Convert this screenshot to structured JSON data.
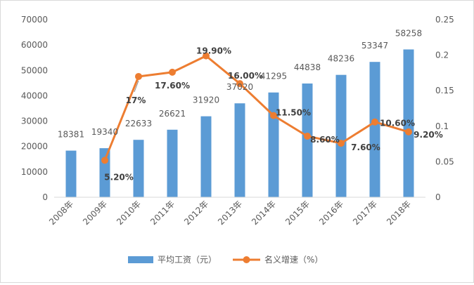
{
  "chart_data": {
    "type": "bar",
    "categories": [
      "2008年",
      "2009年",
      "2010年",
      "2011年",
      "2012年",
      "2013年",
      "2014年",
      "2015年",
      "2016年",
      "2017年",
      "2018年"
    ],
    "series": [
      {
        "name": "平均工资（元）",
        "type": "bar",
        "axis": "left",
        "values": [
          18381,
          19340,
          22633,
          26621,
          31920,
          37020,
          41295,
          44838,
          48236,
          53347,
          58258
        ],
        "data_labels": [
          "18381",
          "19340",
          "22633",
          "26621",
          "31920",
          "37020",
          "41295",
          "44838",
          "48236",
          "53347",
          "58258"
        ],
        "color": "#5b9bd5"
      },
      {
        "name": "名义增速（%）",
        "type": "line",
        "axis": "right",
        "values": [
          null,
          0.052,
          0.17,
          0.176,
          0.199,
          0.16,
          0.115,
          0.086,
          0.076,
          0.106,
          0.092
        ],
        "data_labels": [
          null,
          "5.20%",
          "17%",
          "17.60%",
          "19.90%",
          "16.00%",
          "11.50%",
          "8.60%",
          "7.60%",
          "10.60%",
          "9.20%"
        ],
        "color": "#ed7d31"
      }
    ],
    "y_left": {
      "range": [
        0,
        70000
      ],
      "ticks": [
        "0",
        "10000",
        "20000",
        "30000",
        "40000",
        "50000",
        "60000",
        "70000"
      ]
    },
    "y_right": {
      "range": [
        0,
        0.25
      ],
      "ticks": [
        "0",
        "0.05",
        "0.1",
        "0.15",
        "0.2",
        "0.25"
      ]
    },
    "grid": false,
    "legend_position": "bottom",
    "axis_color": "#d9d9d9",
    "tick_label_color": "#595959",
    "line_label_color": "#404040"
  }
}
